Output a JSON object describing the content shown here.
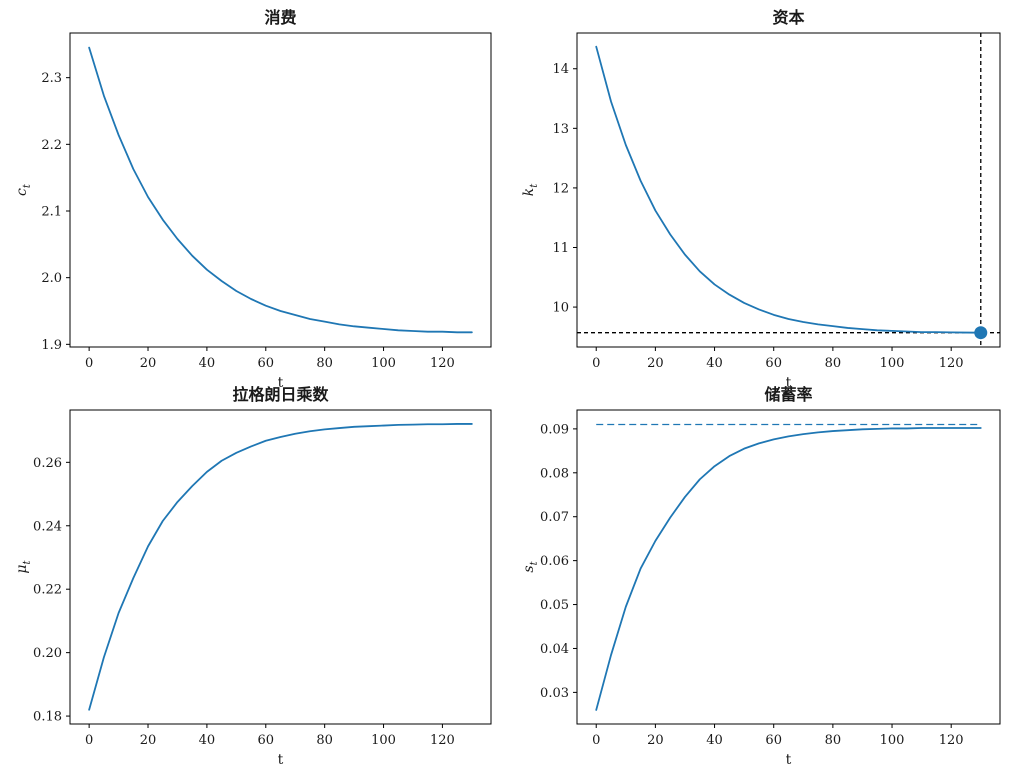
{
  "chart_data": [
    {
      "type": "line",
      "title": "消费",
      "xlabel": "t",
      "ylabel": {
        "symbol": "c",
        "subscript": "t"
      },
      "xlim": [
        -6.5,
        136.5
      ],
      "ylim": [
        1.896,
        2.367
      ],
      "xticks": [
        0,
        20,
        40,
        60,
        80,
        100,
        120
      ],
      "xtick_labels": [
        "0",
        "20",
        "40",
        "60",
        "80",
        "100",
        "120"
      ],
      "yticks": [
        1.9,
        2.0,
        2.1,
        2.2,
        2.3
      ],
      "ytick_labels": [
        "1.9",
        "2.0",
        "2.1",
        "2.2",
        "2.3"
      ],
      "grid": false,
      "series": [
        {
          "color": "#1f77b4",
          "x": [
            0,
            5,
            10,
            15,
            20,
            25,
            30,
            35,
            40,
            45,
            50,
            55,
            60,
            65,
            70,
            75,
            80,
            85,
            90,
            95,
            100,
            105,
            110,
            115,
            120,
            125,
            130
          ],
          "y": [
            2.345,
            2.273,
            2.214,
            2.163,
            2.121,
            2.087,
            2.058,
            2.033,
            2.012,
            1.995,
            1.98,
            1.968,
            1.958,
            1.95,
            1.944,
            1.938,
            1.934,
            1.93,
            1.927,
            1.925,
            1.923,
            1.921,
            1.92,
            1.919,
            1.919,
            1.918,
            1.918
          ]
        }
      ],
      "reference_lines": [],
      "markers": []
    },
    {
      "type": "line",
      "title": "资本",
      "xlabel": "t",
      "ylabel": {
        "symbol": "k",
        "subscript": "t"
      },
      "xlim": [
        -6.5,
        136.5
      ],
      "ylim": [
        9.33,
        14.6
      ],
      "xticks": [
        0,
        20,
        40,
        60,
        80,
        100,
        120
      ],
      "xtick_labels": [
        "0",
        "20",
        "40",
        "60",
        "80",
        "100",
        "120"
      ],
      "yticks": [
        10,
        11,
        12,
        13,
        14
      ],
      "ytick_labels": [
        "10",
        "11",
        "12",
        "13",
        "14"
      ],
      "grid": false,
      "series": [
        {
          "color": "#1f77b4",
          "x": [
            0,
            5,
            10,
            15,
            20,
            25,
            30,
            35,
            40,
            45,
            50,
            55,
            60,
            65,
            70,
            75,
            80,
            85,
            90,
            95,
            100,
            105,
            110,
            115,
            120,
            125,
            130
          ],
          "y": [
            14.37,
            13.45,
            12.72,
            12.12,
            11.62,
            11.22,
            10.88,
            10.6,
            10.38,
            10.21,
            10.07,
            9.96,
            9.87,
            9.8,
            9.75,
            9.71,
            9.68,
            9.65,
            9.63,
            9.61,
            9.6,
            9.59,
            9.58,
            9.58,
            9.575,
            9.572,
            9.57
          ]
        }
      ],
      "reference_lines": [
        {
          "orientation": "horizontal",
          "value": 9.57,
          "color": "#000000",
          "style": "dashed"
        },
        {
          "orientation": "vertical",
          "value": 130,
          "color": "#000000",
          "style": "dashed"
        }
      ],
      "markers": [
        {
          "x": 130,
          "y": 9.57,
          "color": "#1f77b4"
        }
      ]
    },
    {
      "type": "line",
      "title": "拉格朗日乘数",
      "xlabel": "t",
      "ylabel": {
        "symbol": "μ",
        "subscript": "t"
      },
      "xlim": [
        -6.5,
        136.5
      ],
      "ylim": [
        0.1775,
        0.2765
      ],
      "xticks": [
        0,
        20,
        40,
        60,
        80,
        100,
        120
      ],
      "xtick_labels": [
        "0",
        "20",
        "40",
        "60",
        "80",
        "100",
        "120"
      ],
      "yticks": [
        0.18,
        0.2,
        0.22,
        0.24,
        0.26
      ],
      "ytick_labels": [
        "0.18",
        "0.20",
        "0.22",
        "0.24",
        "0.26"
      ],
      "grid": false,
      "series": [
        {
          "color": "#1f77b4",
          "x": [
            0,
            5,
            10,
            15,
            20,
            25,
            30,
            35,
            40,
            45,
            50,
            55,
            60,
            65,
            70,
            75,
            80,
            85,
            90,
            95,
            100,
            105,
            110,
            115,
            120,
            125,
            130
          ],
          "y": [
            0.182,
            0.1985,
            0.2125,
            0.2235,
            0.2335,
            0.2415,
            0.2475,
            0.2525,
            0.257,
            0.2605,
            0.263,
            0.265,
            0.2668,
            0.268,
            0.269,
            0.2698,
            0.2704,
            0.2708,
            0.2712,
            0.2714,
            0.2716,
            0.2718,
            0.2719,
            0.272,
            0.272,
            0.2721,
            0.2721
          ]
        }
      ],
      "reference_lines": [],
      "markers": []
    },
    {
      "type": "line",
      "title": "储蓄率",
      "xlabel": "t",
      "ylabel": {
        "symbol": "s",
        "subscript": "t"
      },
      "xlim": [
        -6.5,
        136.5
      ],
      "ylim": [
        0.0228,
        0.0943
      ],
      "xticks": [
        0,
        20,
        40,
        60,
        80,
        100,
        120
      ],
      "xtick_labels": [
        "0",
        "20",
        "40",
        "60",
        "80",
        "100",
        "120"
      ],
      "yticks": [
        0.03,
        0.04,
        0.05,
        0.06,
        0.07,
        0.08,
        0.09
      ],
      "ytick_labels": [
        "0.03",
        "0.04",
        "0.05",
        "0.06",
        "0.07",
        "0.08",
        "0.09"
      ],
      "grid": false,
      "series": [
        {
          "color": "#1f77b4",
          "x": [
            0,
            5,
            10,
            15,
            20,
            25,
            30,
            35,
            40,
            45,
            50,
            55,
            60,
            65,
            70,
            75,
            80,
            85,
            90,
            95,
            100,
            105,
            110,
            115,
            120,
            125,
            130
          ],
          "y": [
            0.026,
            0.0385,
            0.0495,
            0.0582,
            0.0645,
            0.0698,
            0.0745,
            0.0785,
            0.0815,
            0.0838,
            0.0855,
            0.0867,
            0.0876,
            0.0883,
            0.0888,
            0.0892,
            0.0895,
            0.0897,
            0.0899,
            0.09,
            0.0901,
            0.0901,
            0.0902,
            0.0902,
            0.0902,
            0.0902,
            0.0902
          ]
        }
      ],
      "reference_lines": [
        {
          "orientation": "horizontal",
          "value": 0.091,
          "color": "#1f77b4",
          "style": "dashed",
          "x_range": [
            0,
            130
          ]
        }
      ],
      "markers": []
    }
  ]
}
